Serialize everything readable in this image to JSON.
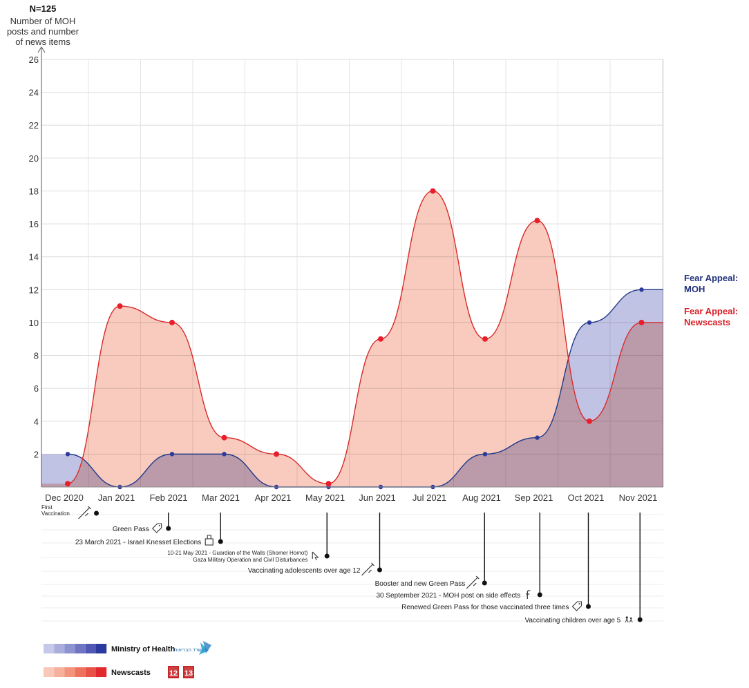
{
  "chart_data": {
    "type": "area",
    "title": "N=125",
    "ylabel": [
      "Number of MOH",
      "posts and number",
      "of news items"
    ],
    "ylim": [
      0,
      26
    ],
    "yticks": [
      2,
      4,
      6,
      8,
      10,
      12,
      14,
      16,
      18,
      20,
      22,
      24,
      26
    ],
    "categories": [
      "Dec 2020",
      "Jan 2021",
      "Feb 2021",
      "Mar 2021",
      "Apr 2021",
      "May 2021",
      "Jun 2021",
      "Jul 2021",
      "Aug 2021",
      "Sep 2021",
      "Oct 2021",
      "Nov 2021"
    ],
    "grid": true,
    "series": [
      {
        "name": [
          "Fear Appeal:",
          "Newscasts"
        ],
        "color": "#d82a2a",
        "fill": "#f5b7a5",
        "values": [
          0.2,
          11,
          10,
          3,
          2,
          0.2,
          9,
          18,
          9,
          16.2,
          4,
          10
        ]
      },
      {
        "name": [
          "Fear Appeal:",
          "MOH"
        ],
        "color": "#1f3a8a",
        "fill": "#9fa3d6",
        "values": [
          2,
          0,
          2,
          2,
          0,
          0,
          0,
          0,
          2,
          3,
          10,
          12
        ]
      }
    ],
    "events": [
      {
        "label": [
          "First",
          "Vaccination"
        ],
        "icon": "syringe-icon",
        "month": 0.55
      },
      {
        "label": [
          "Green Pass"
        ],
        "icon": "tag-icon",
        "month": 1.93
      },
      {
        "label": [
          "23 March 2021 - Israel Knesset Elections"
        ],
        "icon": "ballot-box-icon",
        "month": 2.93
      },
      {
        "label": [
          "10-21 May 2021 - Guardian of the Walls (Shomer Homot)",
          "Gaza Military Operation and Civil Disturbances"
        ],
        "icon": "cursor-icon",
        "month": 4.97
      },
      {
        "label": [
          "Vaccinating adolescents over age 12"
        ],
        "icon": "syringe-icon",
        "month": 5.98
      },
      {
        "label": [
          "Booster and new Green Pass"
        ],
        "icon": "syringe-icon",
        "month": 7.99
      },
      {
        "label": [
          "30 September 2021 - MOH post on side effects"
        ],
        "icon": "facebook-icon",
        "month": 9.05
      },
      {
        "label": [
          "Renewed Green Pass for those vaccinated three times"
        ],
        "icon": "tag-icon",
        "month": 9.98
      },
      {
        "label": [
          "Vaccinating children over age 5"
        ],
        "icon": "children-icon",
        "month": 10.97
      }
    ],
    "legend": [
      {
        "label": "Ministry of Health",
        "colors": [
          "#c5c8e8",
          "#a9aedd",
          "#8d92d1",
          "#6f75c3",
          "#5158b3",
          "#2c3aa0"
        ],
        "logo": "ministry-of-health-logo",
        "logo_text": "משרד הבריאות"
      },
      {
        "label": "Newscasts",
        "colors": [
          "#f8c8b8",
          "#f6b09c",
          "#f3937c",
          "#ee735e",
          "#e85247",
          "#e02a2e"
        ],
        "logos": [
          "channel-12-logo",
          "channel-13-logo"
        ],
        "logo_texts": [
          "12",
          "13"
        ]
      }
    ]
  }
}
